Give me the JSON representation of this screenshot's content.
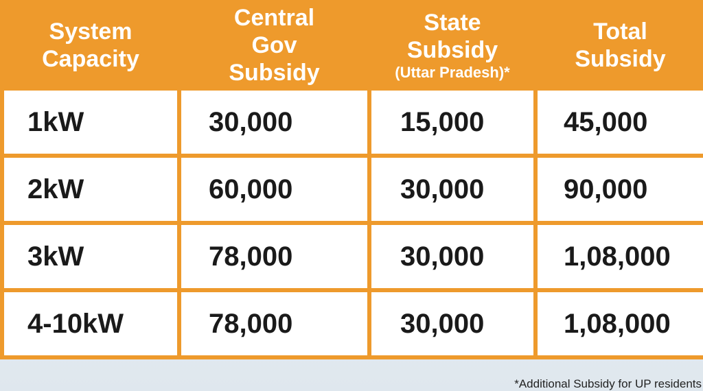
{
  "table": {
    "header": [
      "System Capacity",
      "Central Gov Subsidy",
      "State Subsidy",
      "Total Subsidy"
    ],
    "header_note": "(Uttar Pradesh)*",
    "rows": [
      [
        "1kW",
        "30,000",
        "15,000",
        "45,000"
      ],
      [
        "2kW",
        "60,000",
        "30,000",
        "90,000"
      ],
      [
        "3kW",
        "78,000",
        "30,000",
        "1,08,000"
      ],
      [
        "4-10kW",
        "78,000",
        "30,000",
        "1,08,000"
      ]
    ]
  },
  "footnote": "*Additional Subsidy for UP residents"
}
